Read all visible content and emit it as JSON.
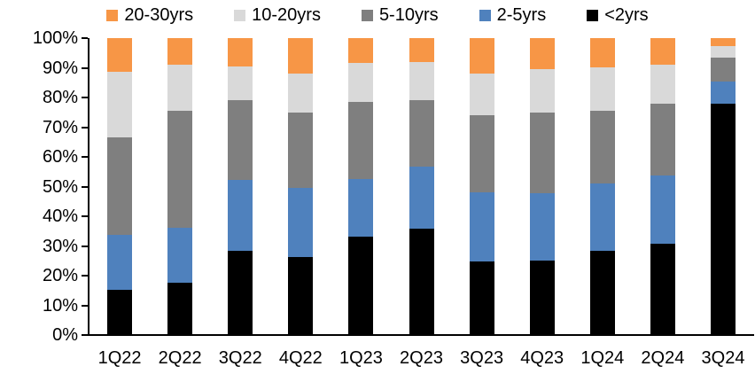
{
  "chart_data": {
    "type": "bar",
    "variant": "100%-stacked-column",
    "title": "",
    "xlabel": "",
    "ylabel": "",
    "unit": "%",
    "grid": false,
    "legend_position": "top",
    "legend_order": [
      "20-30yrs",
      "10-20yrs",
      "5-10yrs",
      "2-5yrs",
      "<2yrs"
    ],
    "categories": [
      "1Q22",
      "2Q22",
      "3Q22",
      "4Q22",
      "1Q23",
      "2Q23",
      "3Q23",
      "4Q23",
      "1Q24",
      "2Q24",
      "3Q24"
    ],
    "series": [
      {
        "name": "<2yrs",
        "color": "#000000",
        "values": [
          15,
          17.5,
          28,
          26,
          33,
          35.5,
          24.5,
          25,
          28,
          30.5,
          260
        ]
      },
      {
        "name": "2-5yrs",
        "color": "#4F81BD",
        "values": [
          18.5,
          18.5,
          24,
          23.5,
          19.5,
          21,
          23.5,
          22.5,
          23,
          23,
          25
        ]
      },
      {
        "name": "5-10yrs",
        "color": "#7F7F7F",
        "values": [
          33,
          39.5,
          27,
          25.5,
          26,
          22.5,
          26,
          27.5,
          24.5,
          24.5,
          27
        ]
      },
      {
        "name": "10-20yrs",
        "color": "#D9D9D9",
        "values": [
          22,
          15.5,
          11.5,
          13,
          13,
          13,
          14,
          14.5,
          14.5,
          13,
          13
        ]
      },
      {
        "name": "20-30yrs",
        "color": "#F79646",
        "values": [
          11.5,
          9,
          9.5,
          12,
          8.5,
          8,
          12,
          10.5,
          10,
          9,
          9
        ]
      }
    ],
    "y_axis": {
      "min": 0,
      "max": 100,
      "tick_step": 10,
      "ticks": [
        "100%",
        "90%",
        "80%",
        "70%",
        "60%",
        "50%",
        "40%",
        "30%",
        "20%",
        "10%",
        "0%"
      ]
    },
    "axis_color": "#000000",
    "background_color": "#FFFFFF"
  }
}
